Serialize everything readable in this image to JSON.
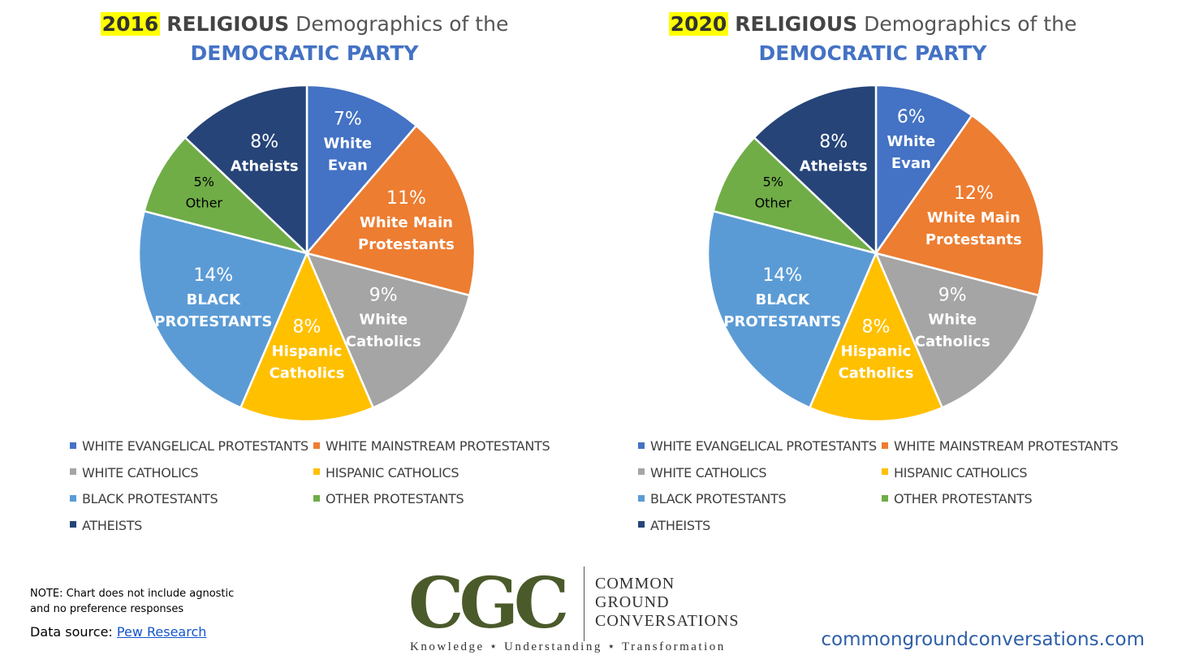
{
  "chart_data": [
    {
      "type": "pie",
      "title": {
        "year": "2016",
        "bold": "RELIGIOUS",
        "rest": "Demographics of the",
        "line2": "DEMOCRATIC PARTY"
      },
      "slices": [
        {
          "name": "WHITE EVANGELICAL PROTESTANTS",
          "value": 7,
          "pct_label": "7%",
          "label_lines": [
            "White",
            "Evan"
          ],
          "color": "#4472c4"
        },
        {
          "name": "WHITE MAINSTREAM PROTESTANTS",
          "value": 11,
          "pct_label": "11%",
          "label_lines": [
            "White Main",
            "Protestants"
          ],
          "color": "#ed7d31"
        },
        {
          "name": "WHITE CATHOLICS",
          "value": 9,
          "pct_label": "9%",
          "label_lines": [
            "White",
            "Catholics"
          ],
          "color": "#a5a5a5"
        },
        {
          "name": "HISPANIC CATHOLICS",
          "value": 8,
          "pct_label": "8%",
          "label_lines": [
            "Hispanic",
            "Catholics"
          ],
          "color": "#ffc000"
        },
        {
          "name": "BLACK PROTESTANTS",
          "value": 14,
          "pct_label": "14%",
          "label_lines": [
            "BLACK",
            "PROTESTANTS"
          ],
          "color": "#5b9bd5"
        },
        {
          "name": "OTHER PROTESTANTS",
          "value": 5,
          "pct_label": "5%",
          "label_lines": [
            "Other"
          ],
          "color": "#70ad47"
        },
        {
          "name": "ATHEISTS",
          "value": 8,
          "pct_label": "8%",
          "label_lines": [
            "Atheists"
          ],
          "color": "#264478"
        }
      ]
    },
    {
      "type": "pie",
      "title": {
        "year": "2020",
        "bold": "RELIGIOUS",
        "rest": "Demographics of the",
        "line2": "DEMOCRATIC PARTY"
      },
      "slices": [
        {
          "name": "WHITE EVANGELICAL PROTESTANTS",
          "value": 6,
          "pct_label": "6%",
          "label_lines": [
            "White",
            "Evan"
          ],
          "color": "#4472c4"
        },
        {
          "name": "WHITE MAINSTREAM PROTESTANTS",
          "value": 12,
          "pct_label": "12%",
          "label_lines": [
            "White Main",
            "Protestants"
          ],
          "color": "#ed7d31"
        },
        {
          "name": "WHITE CATHOLICS",
          "value": 9,
          "pct_label": "9%",
          "label_lines": [
            "White",
            "Catholics"
          ],
          "color": "#a5a5a5"
        },
        {
          "name": "HISPANIC CATHOLICS",
          "value": 8,
          "pct_label": "8%",
          "label_lines": [
            "Hispanic",
            "Catholics"
          ],
          "color": "#ffc000"
        },
        {
          "name": "BLACK PROTESTANTS",
          "value": 14,
          "pct_label": "14%",
          "label_lines": [
            "BLACK",
            "PROTESTANTS"
          ],
          "color": "#5b9bd5"
        },
        {
          "name": "OTHER PROTESTANTS",
          "value": 5,
          "pct_label": "5%",
          "label_lines": [
            "Other"
          ],
          "color": "#70ad47"
        },
        {
          "name": "ATHEISTS",
          "value": 8,
          "pct_label": "8%",
          "label_lines": [
            "Atheists"
          ],
          "color": "#264478"
        }
      ]
    }
  ],
  "footer": {
    "note_line1": "NOTE: Chart does not include agnostic",
    "note_line2": "and no preference responses",
    "source_prefix": "Data source:",
    "source_link": "Pew Research",
    "logo_letters": "CGC",
    "logo_word1": "COMMON",
    "logo_word2": "GROUND",
    "logo_word3": "CONVERSATIONS",
    "logo_tagline": "Knowledge ⋆ Understanding ⋆ Transformation",
    "website": "commongroundconversations.com"
  }
}
